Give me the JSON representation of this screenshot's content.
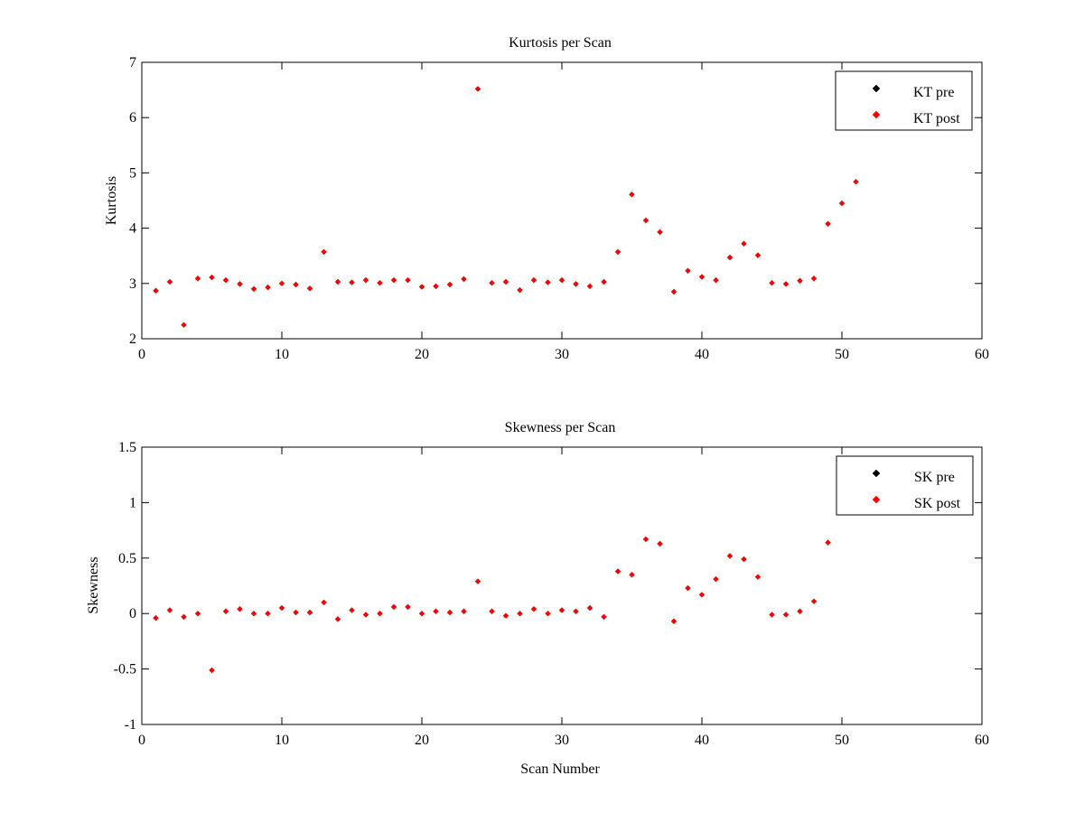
{
  "chart_data": [
    {
      "type": "scatter",
      "title": "Kurtosis per Scan",
      "xlabel": "",
      "ylabel": "Kurtosis",
      "xlim": [
        0,
        60
      ],
      "ylim": [
        2,
        7
      ],
      "xticks": [
        0,
        10,
        20,
        30,
        40,
        50,
        60
      ],
      "yticks": [
        2,
        3,
        4,
        5,
        6,
        7
      ],
      "grid": false,
      "legend_position": "top-right",
      "series": [
        {
          "name": "KT pre",
          "color": "#000000",
          "x": [
            1,
            2,
            3,
            4,
            5,
            6,
            7,
            8,
            9,
            10,
            11,
            12,
            13,
            14,
            15,
            16,
            17,
            18,
            19,
            20,
            21,
            22,
            23,
            24,
            25,
            26,
            27,
            28,
            29,
            30,
            31,
            32,
            33,
            34,
            35,
            36,
            37,
            38,
            39,
            40,
            41,
            42,
            43,
            44,
            45,
            46,
            47,
            48,
            49,
            50,
            51
          ],
          "y": [
            2.87,
            3.03,
            2.25,
            3.09,
            3.11,
            3.06,
            2.99,
            2.9,
            2.93,
            3.0,
            2.98,
            2.91,
            3.57,
            3.03,
            3.02,
            3.06,
            3.01,
            3.06,
            3.06,
            2.94,
            2.95,
            2.98,
            3.08,
            6.52,
            3.01,
            3.03,
            2.88,
            3.06,
            3.02,
            3.06,
            2.99,
            2.95,
            3.03,
            3.57,
            4.61,
            4.14,
            3.93,
            2.85,
            3.23,
            3.12,
            3.06,
            3.47,
            3.72,
            3.51,
            3.01,
            2.99,
            3.05,
            3.09,
            4.08,
            4.45,
            4.84
          ]
        },
        {
          "name": "KT post",
          "color": "#ff0000",
          "x": [
            1,
            2,
            3,
            4,
            5,
            6,
            7,
            8,
            9,
            10,
            11,
            12,
            13,
            14,
            15,
            16,
            17,
            18,
            19,
            20,
            21,
            22,
            23,
            24,
            25,
            26,
            27,
            28,
            29,
            30,
            31,
            32,
            33,
            34,
            35,
            36,
            37,
            38,
            39,
            40,
            41,
            42,
            43,
            44,
            45,
            46,
            47,
            48,
            49,
            50,
            51
          ],
          "y": [
            2.87,
            3.03,
            2.25,
            3.09,
            3.11,
            3.06,
            2.99,
            2.9,
            2.93,
            3.0,
            2.98,
            2.91,
            3.57,
            3.03,
            3.02,
            3.06,
            3.01,
            3.06,
            3.06,
            2.94,
            2.95,
            2.98,
            3.08,
            6.52,
            3.01,
            3.03,
            2.88,
            3.06,
            3.02,
            3.06,
            2.99,
            2.95,
            3.03,
            3.57,
            4.61,
            4.14,
            3.93,
            2.85,
            3.23,
            3.12,
            3.06,
            3.47,
            3.72,
            3.51,
            3.01,
            2.99,
            3.05,
            3.09,
            4.08,
            4.45,
            4.84
          ]
        }
      ]
    },
    {
      "type": "scatter",
      "title": "Skewness per Scan",
      "xlabel": "Scan Number",
      "ylabel": "Skewness",
      "xlim": [
        0,
        60
      ],
      "ylim": [
        -1,
        1.5
      ],
      "xticks": [
        0,
        10,
        20,
        30,
        40,
        50,
        60
      ],
      "yticks": [
        -1,
        -0.5,
        0,
        0.5,
        1,
        1.5
      ],
      "grid": false,
      "legend_position": "top-right",
      "series": [
        {
          "name": "SK pre",
          "color": "#000000",
          "x": [
            1,
            2,
            3,
            4,
            5,
            6,
            7,
            8,
            9,
            10,
            11,
            12,
            13,
            14,
            15,
            16,
            17,
            18,
            19,
            20,
            21,
            22,
            23,
            24,
            25,
            26,
            27,
            28,
            29,
            30,
            31,
            32,
            33,
            34,
            35,
            36,
            37,
            38,
            39,
            40,
            41,
            42,
            43,
            44,
            45,
            46,
            47,
            48,
            49
          ],
          "y": [
            -0.04,
            0.03,
            -0.03,
            0.0,
            -0.51,
            0.02,
            0.04,
            0.0,
            0.0,
            0.05,
            0.01,
            0.01,
            0.1,
            -0.05,
            0.03,
            -0.01,
            0.0,
            0.06,
            0.06,
            0.0,
            0.02,
            0.01,
            0.02,
            0.29,
            0.02,
            -0.02,
            0.0,
            0.04,
            0.0,
            0.03,
            0.02,
            0.05,
            -0.03,
            0.38,
            0.35,
            0.67,
            0.63,
            -0.07,
            0.23,
            0.17,
            0.31,
            0.52,
            0.49,
            0.33,
            -0.01,
            -0.01,
            0.02,
            0.11,
            0.64
          ]
        },
        {
          "name": "SK post",
          "color": "#ff0000",
          "x": [
            1,
            2,
            3,
            4,
            5,
            6,
            7,
            8,
            9,
            10,
            11,
            12,
            13,
            14,
            15,
            16,
            17,
            18,
            19,
            20,
            21,
            22,
            23,
            24,
            25,
            26,
            27,
            28,
            29,
            30,
            31,
            32,
            33,
            34,
            35,
            36,
            37,
            38,
            39,
            40,
            41,
            42,
            43,
            44,
            45,
            46,
            47,
            48,
            49
          ],
          "y": [
            -0.04,
            0.03,
            -0.03,
            0.0,
            -0.51,
            0.02,
            0.04,
            0.0,
            0.0,
            0.05,
            0.01,
            0.01,
            0.1,
            -0.05,
            0.03,
            -0.01,
            0.0,
            0.06,
            0.06,
            0.0,
            0.02,
            0.01,
            0.02,
            0.29,
            0.02,
            -0.02,
            0.0,
            0.04,
            0.0,
            0.03,
            0.02,
            0.05,
            -0.03,
            0.38,
            0.35,
            0.67,
            0.63,
            -0.07,
            0.23,
            0.17,
            0.31,
            0.52,
            0.49,
            0.33,
            -0.01,
            -0.01,
            0.02,
            0.11,
            0.64
          ]
        }
      ]
    }
  ]
}
